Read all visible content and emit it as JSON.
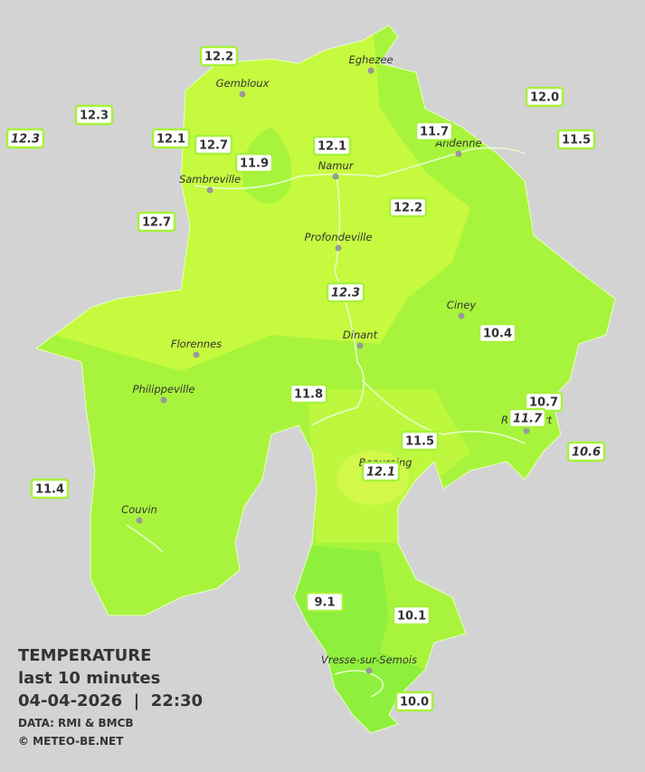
{
  "legend": {
    "title": "TEMPERATURE",
    "subtitle": "last 10 minutes",
    "datetime": "04-04-2026  |  22:30",
    "source": "DATA: RMI & BMCB",
    "copyright": "© METEO-BE.NET"
  },
  "cities": [
    {
      "name": "Eghezee"
    },
    {
      "name": "Gembloux"
    },
    {
      "name": "Andenne"
    },
    {
      "name": "Namur"
    },
    {
      "name": "Sambreville"
    },
    {
      "name": "Profondeville"
    },
    {
      "name": "Ciney"
    },
    {
      "name": "Dinant"
    },
    {
      "name": "Florennes"
    },
    {
      "name": "Philippeville"
    },
    {
      "name": "Rochefort"
    },
    {
      "name": "Beauraing"
    },
    {
      "name": "Couvin"
    },
    {
      "name": "Vresse-sur-Semois"
    }
  ],
  "stations": [
    {
      "value": "12.2"
    },
    {
      "value": "12.3"
    },
    {
      "value": "12.3"
    },
    {
      "value": "12.1"
    },
    {
      "value": "12.7"
    },
    {
      "value": "11.9"
    },
    {
      "value": "12.1"
    },
    {
      "value": "11.7"
    },
    {
      "value": "12.0"
    },
    {
      "value": "11.5"
    },
    {
      "value": "12.7"
    },
    {
      "value": "12.2"
    },
    {
      "value": "12.3"
    },
    {
      "value": "10.4"
    },
    {
      "value": "11.8"
    },
    {
      "value": "10.7"
    },
    {
      "value": "11.7"
    },
    {
      "value": "10.6"
    },
    {
      "value": "11.5"
    },
    {
      "value": "12.1"
    },
    {
      "value": "11.4"
    },
    {
      "value": "9.1"
    },
    {
      "value": "10.1"
    },
    {
      "value": "10.0"
    }
  ]
}
